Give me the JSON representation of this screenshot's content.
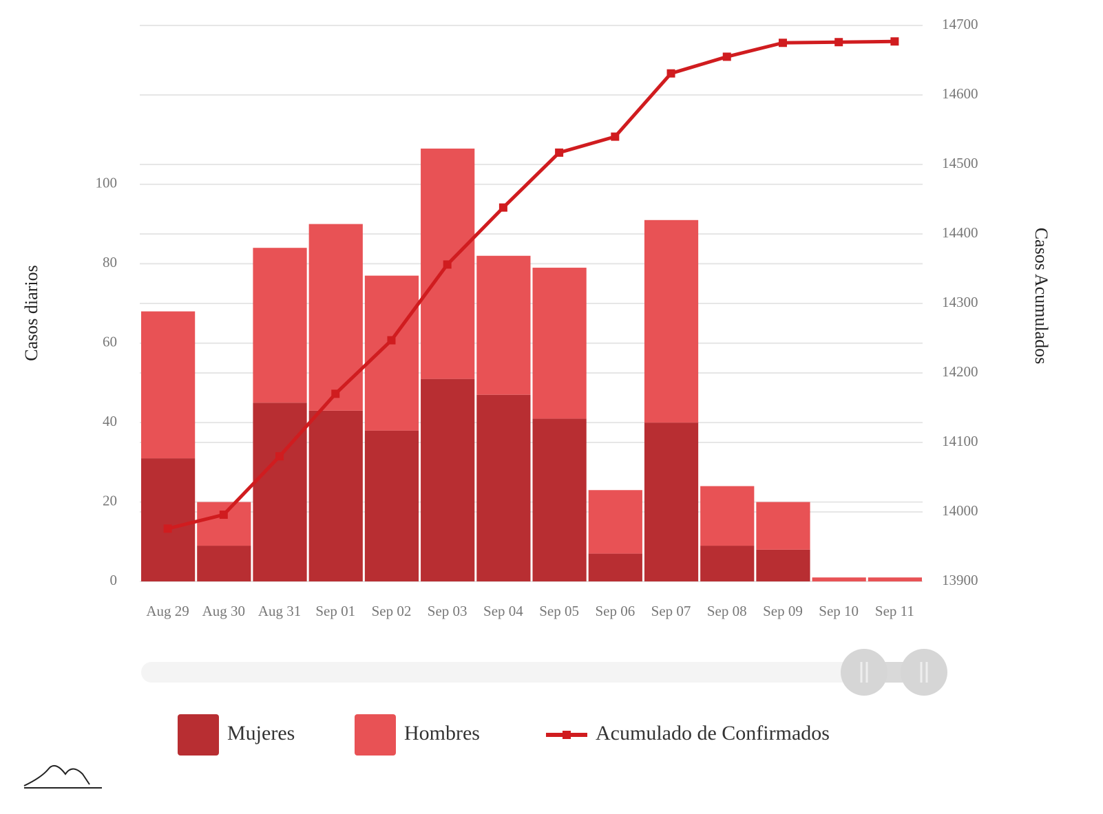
{
  "chart_data": {
    "type": "bar",
    "categories": [
      "Aug 29",
      "Aug 30",
      "Aug 31",
      "Sep 01",
      "Sep 02",
      "Sep 03",
      "Sep 04",
      "Sep 05",
      "Sep 06",
      "Sep 07",
      "Sep 08",
      "Sep 09",
      "Sep 10",
      "Sep 11"
    ],
    "stacked": true,
    "series": [
      {
        "name": "Mujeres",
        "type": "bar",
        "color": "#b82e32",
        "values": [
          31,
          9,
          45,
          43,
          38,
          51,
          47,
          41,
          7,
          40,
          9,
          8,
          0,
          0
        ]
      },
      {
        "name": "Hombres",
        "type": "bar",
        "color": "#e85255",
        "values": [
          37,
          11,
          39,
          47,
          39,
          58,
          35,
          38,
          16,
          51,
          15,
          12,
          1,
          1
        ]
      },
      {
        "name": "Acumulado de Confirmados",
        "type": "line",
        "axis": "y2",
        "color": "#d01c1f",
        "values": [
          13976,
          13996,
          14080,
          14170,
          14247,
          14356,
          14438,
          14517,
          14540,
          14631,
          14655,
          14675,
          14676,
          14677
        ]
      }
    ],
    "y_label": "Casos diarios",
    "y2_label": "Casos Acumulados",
    "ylim": [
      0,
      140
    ],
    "yticks": [
      0,
      20,
      40,
      60,
      80,
      100
    ],
    "y2lim": [
      13900,
      14700
    ],
    "y2ticks": [
      13900,
      14000,
      14100,
      14200,
      14300,
      14400,
      14500,
      14600,
      14700
    ],
    "grid": true
  }
}
